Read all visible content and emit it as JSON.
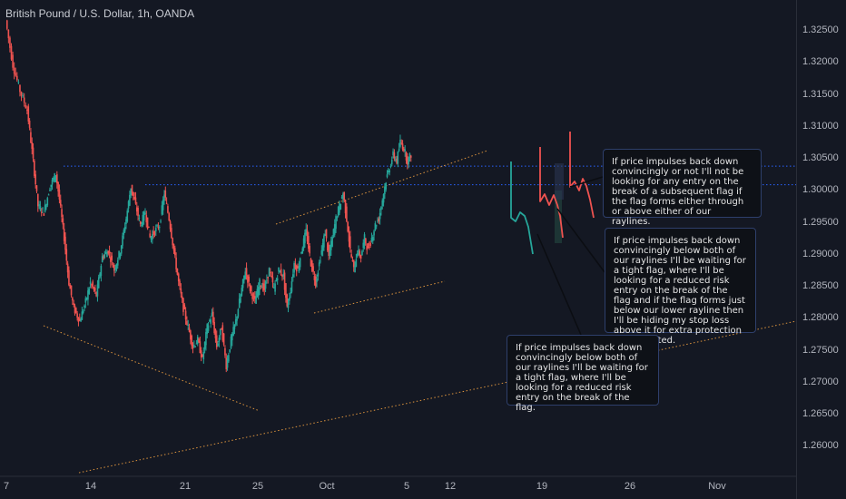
{
  "chart_title": "British Pound / U.S. Dollar, 1h, OANDA",
  "colors": {
    "background": "#141823",
    "up": "#26a69a",
    "down": "#ef5350",
    "level_line": "#2962ff",
    "trendline": "#f0a040",
    "projection_bear": "#ef5350",
    "projection_bull": "#26a69a",
    "note_border": "#2e3f6b"
  },
  "chart_data": {
    "type": "candlestick",
    "symbol": "GBPUSD",
    "interval": "1h",
    "y_axis": {
      "ticks": [
        "1.32500",
        "1.32000",
        "1.31500",
        "1.31000",
        "1.30500",
        "1.30000",
        "1.29500",
        "1.29000",
        "1.28500",
        "1.28000",
        "1.27500",
        "1.27000",
        "1.26500",
        "1.26000"
      ],
      "range": [
        1.2565,
        1.3293
      ]
    },
    "x_axis": {
      "ticks": [
        "7",
        "14",
        "21",
        "25",
        "Oct",
        "5",
        "12",
        "19",
        "26",
        "Nov"
      ]
    },
    "price_path": [
      [
        7.0,
        1.3265
      ],
      [
        7.6,
        1.3195
      ],
      [
        8.2,
        1.3155
      ],
      [
        8.8,
        1.3125
      ],
      [
        9.3,
        1.3045
      ],
      [
        9.7,
        1.2975
      ],
      [
        10.2,
        1.2965
      ],
      [
        10.7,
        1.3005
      ],
      [
        11.2,
        1.3025
      ],
      [
        11.5,
        1.2985
      ],
      [
        11.9,
        1.2925
      ],
      [
        12.3,
        1.2855
      ],
      [
        12.7,
        1.2815
      ],
      [
        13.2,
        1.2795
      ],
      [
        13.7,
        1.2825
      ],
      [
        14.1,
        1.2855
      ],
      [
        14.6,
        1.2835
      ],
      [
        15.1,
        1.2895
      ],
      [
        15.6,
        1.2905
      ],
      [
        16.1,
        1.2875
      ],
      [
        16.6,
        1.2905
      ],
      [
        17.1,
        1.2955
      ],
      [
        17.5,
        1.3005
      ],
      [
        17.9,
        1.2975
      ],
      [
        18.3,
        1.2945
      ],
      [
        18.7,
        1.2965
      ],
      [
        19.1,
        1.2925
      ],
      [
        19.5,
        1.2935
      ],
      [
        19.9,
        1.2945
      ],
      [
        20.3,
        1.2995
      ],
      [
        20.7,
        1.2955
      ],
      [
        21.1,
        1.2905
      ],
      [
        21.5,
        1.2855
      ],
      [
        21.9,
        1.2815
      ],
      [
        22.3,
        1.2785
      ],
      [
        22.7,
        1.2755
      ],
      [
        23.1,
        1.2765
      ],
      [
        23.5,
        1.2735
      ],
      [
        23.9,
        1.2785
      ],
      [
        24.3,
        1.2805
      ],
      [
        24.7,
        1.2755
      ],
      [
        25.1,
        1.2785
      ],
      [
        25.5,
        1.2725
      ],
      [
        25.9,
        1.2765
      ],
      [
        26.3,
        1.2795
      ],
      [
        26.7,
        1.2835
      ],
      [
        27.1,
        1.2875
      ],
      [
        27.5,
        1.2845
      ],
      [
        27.9,
        1.2825
      ],
      [
        28.3,
        1.2855
      ],
      [
        28.7,
        1.2845
      ],
      [
        29.1,
        1.2875
      ],
      [
        29.5,
        1.2845
      ],
      [
        29.9,
        1.2875
      ],
      [
        30.3,
        1.2865
      ],
      [
        30.6,
        1.2815
      ],
      [
        30.9,
        1.2845
      ],
      [
        31.2,
        1.2885
      ],
      [
        31.5,
        1.2875
      ],
      [
        31.8,
        1.2905
      ],
      [
        32.2,
        1.2935
      ],
      [
        32.6,
        1.2885
      ],
      [
        33.0,
        1.2855
      ],
      [
        33.4,
        1.2895
      ],
      [
        33.8,
        1.2935
      ],
      [
        34.1,
        1.2895
      ],
      [
        34.4,
        1.2925
      ],
      [
        34.7,
        1.2955
      ],
      [
        35.0,
        1.2975
      ],
      [
        35.3,
        1.2995
      ],
      [
        35.6,
        1.2955
      ],
      [
        35.9,
        1.2905
      ],
      [
        36.2,
        1.2875
      ],
      [
        36.5,
        1.2905
      ],
      [
        36.8,
        1.2895
      ],
      [
        37.1,
        1.2925
      ],
      [
        37.4,
        1.2905
      ],
      [
        37.7,
        1.2925
      ],
      [
        38.0,
        1.2945
      ],
      [
        38.3,
        1.2955
      ],
      [
        38.6,
        1.2985
      ],
      [
        38.9,
        1.3015
      ],
      [
        39.2,
        1.3035
      ],
      [
        39.5,
        1.3055
      ],
      [
        39.8,
        1.3045
      ],
      [
        40.1,
        1.3075
      ],
      [
        40.4,
        1.3065
      ],
      [
        40.7,
        1.3045
      ],
      [
        41.0,
        1.3055
      ]
    ],
    "horizontal_levels": [
      1.3037,
      1.3008
    ],
    "annotations": [
      {
        "text": "If price impulses back down convincingly or not I'll not be looking for any entry on the break of a subsequent flag if the flag forms either through or above either of our raylines."
      },
      {
        "text": "If price impulses back down convincingly below both of our raylines I'll be waiting for a tight flag, where I'll be looking for a reduced risk entry on the break of the flag and if the flag forms just below our lower rayline then I'll be hiding my stop loss above it for extra protection as illustrated."
      },
      {
        "text": "If price impulses back down convincingly below both of our raylines I'll be waiting for a tight flag, where I'll be looking for a reduced risk entry on the break of the flag."
      }
    ]
  }
}
